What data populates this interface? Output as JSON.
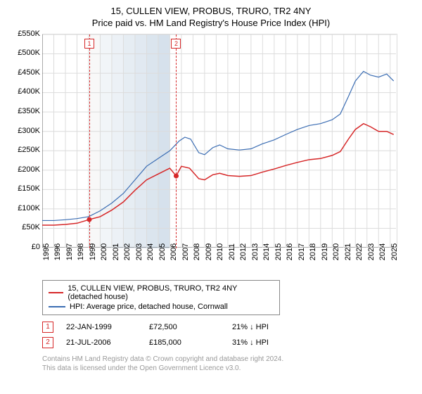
{
  "title_line1": "15, CULLEN VIEW, PROBUS, TRURO, TR2 4NY",
  "title_line2": "Price paid vs. HM Land Registry's House Price Index (HPI)",
  "chart": {
    "type": "line",
    "xlim": [
      1995,
      2025.5
    ],
    "ylim": [
      0,
      550
    ],
    "ytick_step": 50,
    "ytick_prefix": "£",
    "ytick_suffix": "K",
    "xticks": [
      1995,
      1996,
      1997,
      1998,
      1999,
      2000,
      2001,
      2002,
      2003,
      2004,
      2005,
      2006,
      2007,
      2008,
      2009,
      2010,
      2011,
      2012,
      2013,
      2014,
      2015,
      2016,
      2017,
      2018,
      2019,
      2020,
      2021,
      2022,
      2023,
      2024,
      2025
    ],
    "grid_color": "#dcdcdc",
    "axis_color": "#555555",
    "background_color": "#ffffff",
    "band_colors": [
      "#f2f2f2",
      "#e6ecf2",
      "#dce5ee",
      "#d2dee9",
      "#c8d7e5",
      "#bed0e0",
      "#b4c9dc"
    ],
    "band_years": [
      1999,
      2000,
      2001,
      2002,
      2003,
      2004,
      2005,
      2006
    ],
    "series": [
      {
        "name": "HPI: Average price, detached house, Cornwall",
        "color": "#3b6db3",
        "width": 1.2,
        "points": [
          [
            1995,
            70
          ],
          [
            1996,
            70
          ],
          [
            1997,
            72
          ],
          [
            1998,
            75
          ],
          [
            1999,
            80
          ],
          [
            2000,
            95
          ],
          [
            2001,
            115
          ],
          [
            2002,
            140
          ],
          [
            2003,
            175
          ],
          [
            2004,
            210
          ],
          [
            2005,
            230
          ],
          [
            2006,
            250
          ],
          [
            2006.8,
            275
          ],
          [
            2007.3,
            285
          ],
          [
            2007.8,
            280
          ],
          [
            2008.5,
            245
          ],
          [
            2009,
            240
          ],
          [
            2009.7,
            258
          ],
          [
            2010.3,
            265
          ],
          [
            2011,
            255
          ],
          [
            2012,
            252
          ],
          [
            2013,
            255
          ],
          [
            2014,
            268
          ],
          [
            2015,
            278
          ],
          [
            2016,
            292
          ],
          [
            2017,
            305
          ],
          [
            2018,
            315
          ],
          [
            2019,
            320
          ],
          [
            2020,
            330
          ],
          [
            2020.7,
            345
          ],
          [
            2021.4,
            390
          ],
          [
            2022,
            430
          ],
          [
            2022.7,
            455
          ],
          [
            2023.3,
            445
          ],
          [
            2024,
            440
          ],
          [
            2024.7,
            448
          ],
          [
            2025.3,
            430
          ]
        ]
      },
      {
        "name": "15, CULLEN VIEW, PROBUS, TRURO, TR2 4NY (detached house)",
        "color": "#d62728",
        "width": 1.5,
        "points": [
          [
            1995,
            58
          ],
          [
            1996,
            58
          ],
          [
            1997,
            60
          ],
          [
            1998,
            63
          ],
          [
            1999.06,
            72.5
          ],
          [
            2000,
            80
          ],
          [
            2001,
            97
          ],
          [
            2002,
            118
          ],
          [
            2003,
            148
          ],
          [
            2004,
            175
          ],
          [
            2005,
            190
          ],
          [
            2006,
            205
          ],
          [
            2006.55,
            185
          ],
          [
            2007,
            210
          ],
          [
            2007.7,
            205
          ],
          [
            2008.5,
            178
          ],
          [
            2009,
            175
          ],
          [
            2009.7,
            188
          ],
          [
            2010.3,
            192
          ],
          [
            2011,
            186
          ],
          [
            2012,
            184
          ],
          [
            2013,
            186
          ],
          [
            2014,
            195
          ],
          [
            2015,
            203
          ],
          [
            2016,
            212
          ],
          [
            2017,
            220
          ],
          [
            2018,
            227
          ],
          [
            2019,
            230
          ],
          [
            2020,
            238
          ],
          [
            2020.7,
            248
          ],
          [
            2021.4,
            280
          ],
          [
            2022,
            305
          ],
          [
            2022.7,
            320
          ],
          [
            2023.3,
            312
          ],
          [
            2024,
            300
          ],
          [
            2024.7,
            300
          ],
          [
            2025.3,
            292
          ]
        ]
      }
    ],
    "sale_markers": [
      {
        "num": "1",
        "year": 1999.06,
        "price": 72.5
      },
      {
        "num": "2",
        "year": 2006.55,
        "price": 185
      }
    ]
  },
  "legend": [
    {
      "color": "#d62728",
      "label": "15, CULLEN VIEW, PROBUS, TRURO, TR2 4NY (detached house)"
    },
    {
      "color": "#3b6db3",
      "label": "HPI: Average price, detached house, Cornwall"
    }
  ],
  "marker_rows": [
    {
      "num": "1",
      "date": "22-JAN-1999",
      "price": "£72,500",
      "delta": "21% ↓ HPI"
    },
    {
      "num": "2",
      "date": "21-JUL-2006",
      "price": "£185,000",
      "delta": "31% ↓ HPI"
    }
  ],
  "footer_line1": "Contains HM Land Registry data © Crown copyright and database right 2024.",
  "footer_line2": "This data is licensed under the Open Government Licence v3.0."
}
